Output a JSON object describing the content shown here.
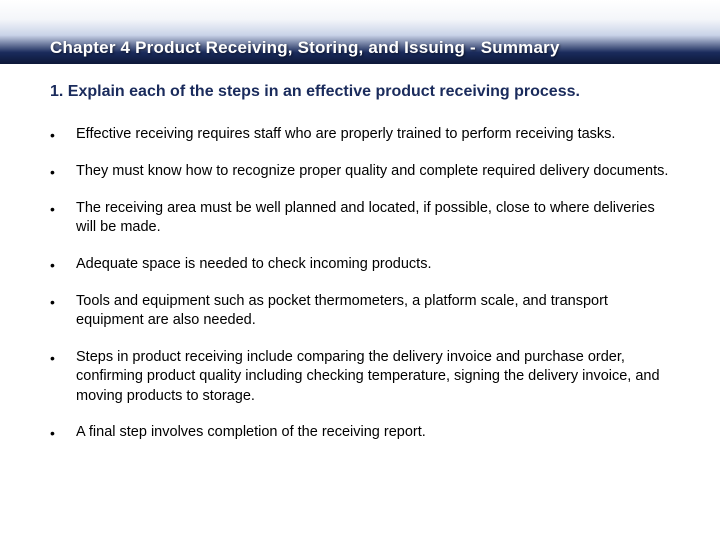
{
  "header": {
    "title": "Chapter 4 Product Receiving, Storing, and Issuing  - Summary"
  },
  "question": "1. Explain each of the steps in an effective product receiving process.",
  "bullets": [
    "Effective receiving requires staff who are properly trained to perform receiving tasks.",
    "They must know how to recognize proper quality and complete required delivery documents.",
    "The receiving area must be well planned and located, if possible, close to where deliveries will be made.",
    "Adequate space is needed to check incoming products.",
    "Tools and equipment such as pocket thermometers, a platform scale, and transport equipment are also needed.",
    "Steps in product receiving include comparing the delivery invoice and purchase order, confirming product quality including checking temperature, signing the delivery invoice, and moving products to storage.",
    "A final step involves completion of the receiving report."
  ],
  "colors": {
    "title_text": "#ffffff",
    "question_text": "#1a2b5c",
    "body_text": "#000000",
    "background": "#ffffff"
  },
  "typography": {
    "title_fontsize": 17,
    "question_fontsize": 16,
    "bullet_fontsize": 14.5,
    "font_family": "Arial"
  }
}
